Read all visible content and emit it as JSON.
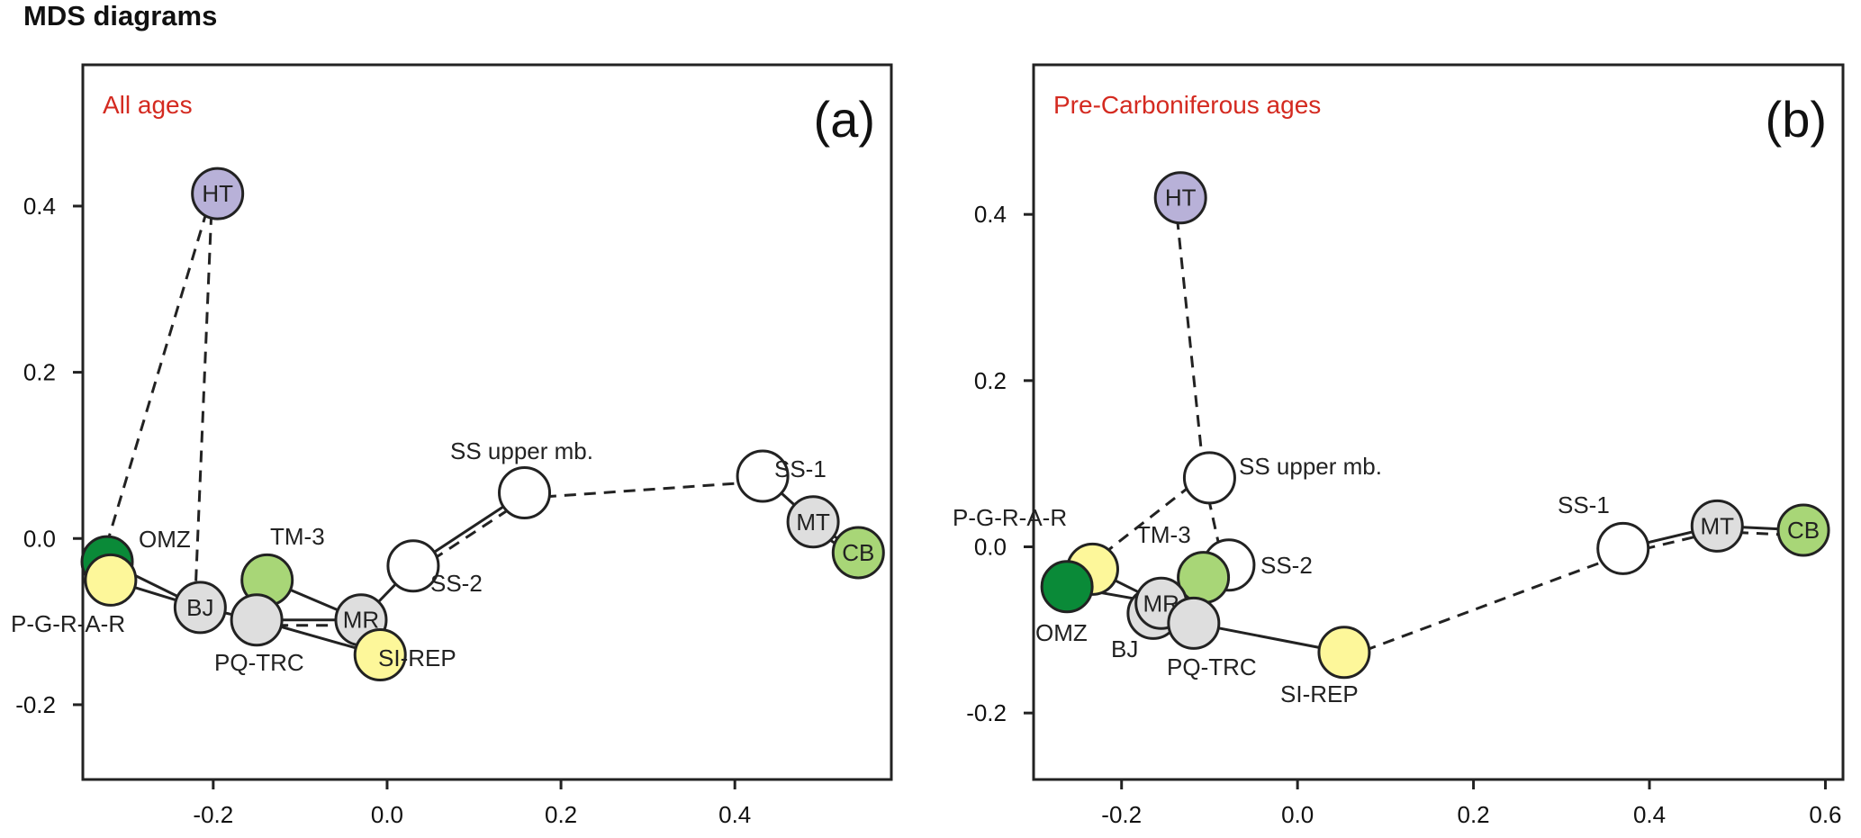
{
  "page": {
    "title": "MDS diagrams"
  },
  "chart_data": [
    {
      "type": "scatter",
      "panel_tag": "(a)",
      "subtitle": "All ages",
      "xlim": [
        -0.35,
        0.58
      ],
      "ylim": [
        -0.29,
        0.57
      ],
      "x_ticks": [
        -0.2,
        0.0,
        0.2,
        0.4
      ],
      "x_tick_labels": [
        "-0.2",
        "0.0",
        "0.2",
        "0.4"
      ],
      "y_ticks": [
        -0.2,
        0.0,
        0.2,
        0.4
      ],
      "y_tick_labels": [
        "-0.2",
        "0.0",
        "0.2",
        "0.4"
      ],
      "points": [
        {
          "id": "HT",
          "x": -0.195,
          "y": 0.415,
          "fill": "#b8b1d8",
          "label": "HT",
          "label_inside": true
        },
        {
          "id": "OMZ",
          "x": -0.322,
          "y": -0.028,
          "fill": "#0a8a38",
          "label": "OMZ",
          "label_inside": false
        },
        {
          "id": "PGRAR",
          "x": -0.318,
          "y": -0.05,
          "fill": "#fdf79a",
          "label": "P-G-R-A-R",
          "label_inside": false
        },
        {
          "id": "BJ",
          "x": -0.215,
          "y": -0.083,
          "fill": "#dedede",
          "label": "BJ",
          "label_inside": true
        },
        {
          "id": "TM3",
          "x": -0.138,
          "y": -0.05,
          "fill": "#a8d677",
          "label": "TM-3",
          "label_inside": false
        },
        {
          "id": "PQTRC",
          "x": -0.15,
          "y": -0.098,
          "fill": "#dedede",
          "label": "PQ-TRC",
          "label_inside": false
        },
        {
          "id": "MR",
          "x": -0.03,
          "y": -0.098,
          "fill": "#dedede",
          "label": "MR",
          "label_inside": true
        },
        {
          "id": "SIREP",
          "x": -0.008,
          "y": -0.14,
          "fill": "#fdf79a",
          "label": "SI-REP",
          "label_inside": false
        },
        {
          "id": "SS2",
          "x": 0.03,
          "y": -0.033,
          "fill": "#ffffff",
          "label": "SS-2",
          "label_inside": false
        },
        {
          "id": "SSU",
          "x": 0.158,
          "y": 0.055,
          "fill": "#ffffff",
          "label": "SS upper mb.",
          "label_inside": false
        },
        {
          "id": "SS1",
          "x": 0.432,
          "y": 0.075,
          "fill": "#ffffff",
          "label": "SS-1",
          "label_inside": false
        },
        {
          "id": "MT",
          "x": 0.49,
          "y": 0.02,
          "fill": "#dedede",
          "label": "MT",
          "label_inside": true
        },
        {
          "id": "CB",
          "x": 0.542,
          "y": -0.017,
          "fill": "#a8d677",
          "label": "CB",
          "label_inside": true
        }
      ],
      "edges_solid": [
        [
          "OMZ",
          "BJ"
        ],
        [
          "PGRAR",
          "BJ"
        ],
        [
          "BJ",
          "PQTRC"
        ],
        [
          "TM3",
          "MR"
        ],
        [
          "PQTRC",
          "MR"
        ],
        [
          "PQTRC",
          "SIREP"
        ],
        [
          "MR",
          "SS2"
        ],
        [
          "SS2",
          "SSU"
        ],
        [
          "MR",
          "SIREP"
        ],
        [
          "SS1",
          "MT"
        ],
        [
          "MT",
          "CB"
        ]
      ],
      "edges_dashed": [
        [
          "HT",
          "OMZ"
        ],
        [
          "HT",
          "BJ"
        ],
        [
          "PQTRC",
          "MR"
        ],
        [
          "SS2",
          "SSU"
        ],
        [
          "SSU",
          "SS1"
        ],
        [
          "MT",
          "CB"
        ]
      ]
    },
    {
      "type": "scatter",
      "panel_tag": "(b)",
      "subtitle": "Pre-Carboniferous ages",
      "xlim": [
        -0.3,
        0.62
      ],
      "ylim": [
        -0.28,
        0.58
      ],
      "x_ticks": [
        -0.2,
        0.0,
        0.2,
        0.4,
        0.6
      ],
      "x_tick_labels": [
        "-0.2",
        "0.0",
        "0.2",
        "0.4",
        "0.6"
      ],
      "y_ticks": [
        -0.2,
        0.0,
        0.2,
        0.4
      ],
      "y_tick_labels": [
        "-0.2",
        "0.0",
        "0.2",
        "0.4"
      ],
      "points": [
        {
          "id": "HT",
          "x": -0.133,
          "y": 0.42,
          "fill": "#b8b1d8",
          "label": "HT",
          "label_inside": true
        },
        {
          "id": "SSU",
          "x": -0.1,
          "y": 0.083,
          "fill": "#ffffff",
          "label": "SS upper mb.",
          "label_inside": false
        },
        {
          "id": "SS2",
          "x": -0.078,
          "y": -0.022,
          "fill": "#ffffff",
          "label": "SS-2",
          "label_inside": false
        },
        {
          "id": "PGRAR",
          "x": -0.233,
          "y": -0.027,
          "fill": "#fdf79a",
          "label": "P-G-R-A-R",
          "label_inside": false
        },
        {
          "id": "TM3",
          "x": -0.107,
          "y": -0.037,
          "fill": "#a8d677",
          "label": "TM-3",
          "label_inside": false
        },
        {
          "id": "OMZ",
          "x": -0.262,
          "y": -0.048,
          "fill": "#0a8a38",
          "label": "OMZ",
          "label_inside": false
        },
        {
          "id": "BJ",
          "x": -0.164,
          "y": -0.08,
          "fill": "#dedede",
          "label": "BJ",
          "label_inside": false
        },
        {
          "id": "MR",
          "x": -0.155,
          "y": -0.068,
          "fill": "#dedede",
          "label": "MR",
          "label_inside": true
        },
        {
          "id": "PQTRC",
          "x": -0.118,
          "y": -0.092,
          "fill": "#dedede",
          "label": "PQ-TRC",
          "label_inside": false
        },
        {
          "id": "SIREP",
          "x": 0.053,
          "y": -0.127,
          "fill": "#fdf79a",
          "label": "SI-REP",
          "label_inside": false
        },
        {
          "id": "SS1",
          "x": 0.37,
          "y": -0.002,
          "fill": "#ffffff",
          "label": "SS-1",
          "label_inside": false
        },
        {
          "id": "MT",
          "x": 0.477,
          "y": 0.025,
          "fill": "#dedede",
          "label": "MT",
          "label_inside": true
        },
        {
          "id": "CB",
          "x": 0.575,
          "y": 0.02,
          "fill": "#a8d677",
          "label": "CB",
          "label_inside": true
        }
      ],
      "edges_solid": [
        [
          "OMZ",
          "MR"
        ],
        [
          "PGRAR",
          "MR"
        ],
        [
          "MR",
          "TM3"
        ],
        [
          "MR",
          "PQTRC"
        ],
        [
          "PQTRC",
          "SIREP"
        ],
        [
          "SS1",
          "MT"
        ],
        [
          "MT",
          "CB"
        ]
      ],
      "edges_dashed": [
        [
          "HT",
          "SSU"
        ],
        [
          "SSU",
          "PGRAR"
        ],
        [
          "SSU",
          "SS2"
        ],
        [
          "SIREP",
          "SS1"
        ],
        [
          "SS1",
          "MT"
        ],
        [
          "MT",
          "CB"
        ]
      ]
    }
  ]
}
